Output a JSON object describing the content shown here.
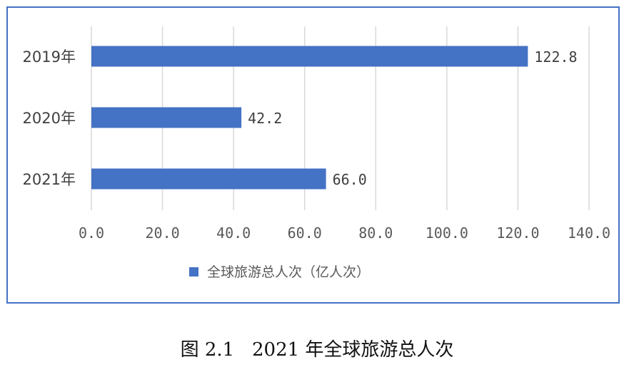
{
  "chart_data": {
    "type": "bar",
    "orientation": "horizontal",
    "categories": [
      "2019年",
      "2020年",
      "2021年"
    ],
    "series": [
      {
        "name": "全球旅游总人次（亿人次）",
        "values": [
          122.8,
          42.2,
          66.0
        ],
        "value_labels": [
          "122.8",
          "42.2",
          "66.0"
        ]
      }
    ],
    "xlim": [
      0,
      140
    ],
    "x_ticks": [
      0,
      20,
      40,
      60,
      80,
      100,
      120,
      140
    ],
    "x_tick_labels": [
      "0.0",
      "20.0",
      "40.0",
      "60.0",
      "80.0",
      "100.0",
      "120.0",
      "140.0"
    ],
    "grid": "vertical",
    "legend_position": "bottom",
    "bar_color": "#4472c4",
    "gridline_color": "#d9d9d9",
    "frame_color": "#4472c4"
  },
  "caption": {
    "figure_number": "图 2.1",
    "title": "2021 年全球旅游总人次"
  }
}
